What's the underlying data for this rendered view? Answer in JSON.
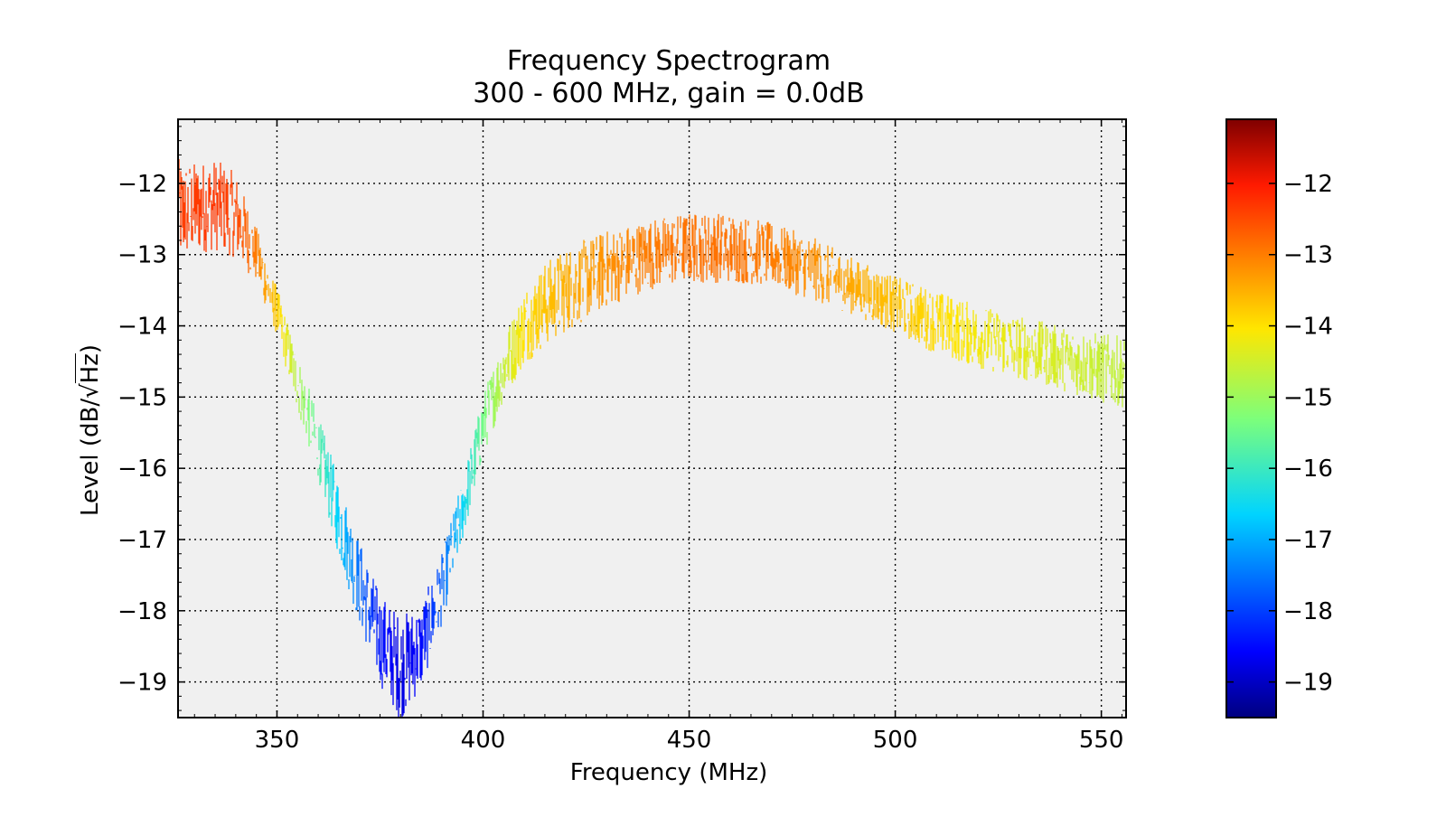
{
  "chart_data": {
    "type": "line",
    "title": "Frequency Spectrogram",
    "subtitle": "300 - 600 MHz, gain = 0.0dB",
    "xlabel": "Frequency (MHz)",
    "ylabel": "Level (dB/√Hz)",
    "ylabel_prefix": "Level (dB/",
    "ylabel_radical": "√",
    "ylabel_radicand": "Hz",
    "ylabel_suffix": ")",
    "xlim": [
      326,
      556
    ],
    "ylim": [
      -19.5,
      -11.1
    ],
    "x_ticks": [
      350,
      400,
      450,
      500,
      550
    ],
    "x_tick_labels": [
      "350",
      "400",
      "450",
      "500",
      "550"
    ],
    "y_ticks": [
      -12,
      -13,
      -14,
      -15,
      -16,
      -17,
      -18,
      -19
    ],
    "y_tick_labels": [
      "−12",
      "−13",
      "−14",
      "−15",
      "−16",
      "−17",
      "−18",
      "−19"
    ],
    "grid": true,
    "colormap": "jet",
    "colorbar": {
      "vmin": -19.5,
      "vmax": -11.1,
      "ticks": [
        -12,
        -13,
        -14,
        -15,
        -16,
        -17,
        -18,
        -19
      ],
      "tick_labels": [
        "−12",
        "−13",
        "−14",
        "−15",
        "−16",
        "−17",
        "−18",
        "−19"
      ]
    },
    "series": [
      {
        "x": [
          326,
          330,
          335,
          340,
          345,
          350,
          355,
          360,
          365,
          370,
          375,
          380,
          385,
          390,
          395,
          400,
          405,
          410,
          415,
          420,
          430,
          440,
          450,
          460,
          470,
          480,
          490,
          500,
          510,
          520,
          530,
          540,
          550,
          556
        ],
        "values": [
          -12.4,
          -12.35,
          -12.3,
          -12.45,
          -13.0,
          -13.8,
          -14.8,
          -15.7,
          -16.7,
          -17.6,
          -18.4,
          -18.8,
          -18.5,
          -17.7,
          -16.6,
          -15.4,
          -14.6,
          -14.0,
          -13.7,
          -13.5,
          -13.2,
          -13.0,
          -12.9,
          -12.9,
          -13.0,
          -13.2,
          -13.45,
          -13.7,
          -13.95,
          -14.15,
          -14.3,
          -14.45,
          -14.6,
          -14.65
        ],
        "noise_band": [
          1.5,
          1.3,
          1.3,
          1.2,
          0.8,
          0.7,
          0.8,
          0.9,
          1.1,
          1.2,
          1.3,
          1.5,
          1.2,
          1.0,
          0.9,
          0.9,
          0.9,
          1.1,
          1.2,
          1.2,
          1.1,
          1.0,
          1.0,
          1.0,
          0.9,
          0.9,
          0.8,
          0.8,
          0.9,
          0.9,
          0.9,
          0.9,
          1.0,
          1.0
        ]
      }
    ]
  }
}
